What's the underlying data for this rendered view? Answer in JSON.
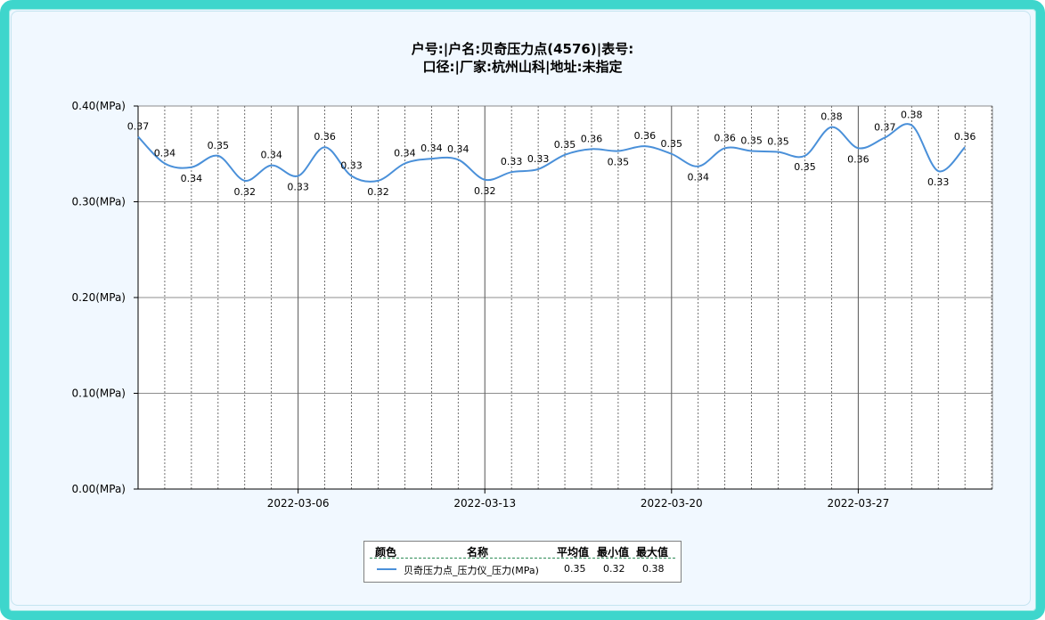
{
  "title_line1": "户号:|户名:贝奇压力点(4576)|表号:",
  "title_line2": "口径:|厂家:杭州山科|地址:未指定",
  "colors": {
    "frame": "#3ed6cc",
    "background": "#f1f8ff",
    "series": "#4a90d9"
  },
  "chart_data": {
    "type": "line",
    "ylim": [
      0,
      0.4
    ],
    "yticks": [
      "0.00(MPa)",
      "0.10(MPa)",
      "0.20(MPa)",
      "0.30(MPa)",
      "0.40(MPa)"
    ],
    "ytick_values": [
      0,
      0.1,
      0.2,
      0.3,
      0.4
    ],
    "xticks": [
      "2022-03-06",
      "2022-03-13",
      "2022-03-20",
      "2022-03-27"
    ],
    "xtick_index": [
      6,
      13,
      20,
      27
    ],
    "grid": true,
    "series": [
      {
        "name": "贝奇压力点_压力仪_压力(MPa)",
        "values": [
          0.37,
          0.34,
          0.34,
          0.35,
          0.32,
          0.34,
          0.33,
          0.36,
          0.33,
          0.32,
          0.34,
          0.34,
          0.34,
          0.32,
          0.33,
          0.33,
          0.35,
          0.36,
          0.35,
          0.36,
          0.35,
          0.34,
          0.36,
          0.35,
          0.35,
          0.35,
          0.38,
          0.36,
          0.37,
          0.38,
          0.33,
          0.36
        ],
        "y_precise": [
          0.368,
          0.34,
          0.336,
          0.348,
          0.322,
          0.338,
          0.327,
          0.357,
          0.327,
          0.322,
          0.34,
          0.345,
          0.344,
          0.323,
          0.331,
          0.334,
          0.349,
          0.355,
          0.353,
          0.358,
          0.35,
          0.337,
          0.356,
          0.353,
          0.352,
          0.348,
          0.378,
          0.356,
          0.367,
          0.38,
          0.332,
          0.357
        ]
      }
    ]
  },
  "legend": {
    "headers": {
      "color": "颜色",
      "name": "名称",
      "avg": "平均值",
      "min": "最小值",
      "max": "最大值"
    },
    "rows": [
      {
        "name": "贝奇压力点_压力仪_压力(MPa)",
        "avg": "0.35",
        "min": "0.32",
        "max": "0.38"
      }
    ]
  }
}
